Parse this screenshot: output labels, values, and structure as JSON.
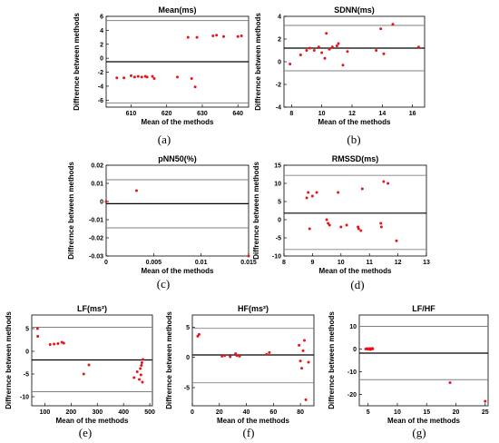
{
  "chart_data": [
    {
      "id": "a",
      "type": "scatter",
      "title": "Mean(ms)",
      "caption": "(a)",
      "xlabel": "Mean of the methods",
      "ylabel": "Diffrernce between methods",
      "xlim": [
        603,
        643
      ],
      "ylim": [
        -7,
        6
      ],
      "xticks": [
        610,
        620,
        630,
        640
      ],
      "yticks": [
        -6,
        -4,
        -2,
        0,
        2,
        4,
        6
      ],
      "lines": [
        5.4,
        -0.5,
        -6.4
      ],
      "x": [
        606,
        608,
        610,
        611,
        612,
        613,
        614,
        614.5,
        616,
        616.5,
        623,
        626,
        627,
        628,
        628.5,
        633,
        634,
        636,
        640,
        641
      ],
      "y": [
        -2.8,
        -2.8,
        -2.5,
        -2.7,
        -2.6,
        -2.7,
        -2.6,
        -2.7,
        -2.6,
        -2.9,
        -2.7,
        3.0,
        -2.9,
        -4.1,
        3.0,
        3.2,
        3.3,
        3.1,
        3.1,
        3.2
      ]
    },
    {
      "id": "b",
      "type": "scatter",
      "title": "SDNN(ms)",
      "caption": "(b)",
      "xlabel": "Mean of the methods",
      "ylabel": "Diffrernce between methods",
      "xlim": [
        7.5,
        16.8
      ],
      "ylim": [
        -4,
        4
      ],
      "xticks": [
        8,
        10,
        12,
        14,
        16
      ],
      "yticks": [
        -4,
        -2,
        0,
        2,
        4
      ],
      "lines": [
        3.2,
        1.2,
        -0.8
      ],
      "x": [
        7.9,
        8.6,
        9.0,
        9.2,
        9.5,
        9.8,
        10.0,
        10.2,
        10.3,
        10.5,
        10.7,
        11.0,
        11.1,
        11.4,
        11.7,
        13.6,
        13.9,
        14.1,
        14.7,
        16.4
      ],
      "y": [
        -0.2,
        0.6,
        1.0,
        1.2,
        1.0,
        1.3,
        0.8,
        0.3,
        2.5,
        1.1,
        1.3,
        1.4,
        1.6,
        -0.3,
        0.9,
        1.0,
        2.9,
        0.7,
        3.3,
        1.3
      ]
    },
    {
      "id": "c",
      "type": "scatter",
      "title": "pNN50(%)",
      "caption": "(c)",
      "xlabel": "Mean of the methods",
      "ylabel": "Diffrernce between methods",
      "xlim": [
        0,
        0.015
      ],
      "ylim": [
        -0.03,
        0.02
      ],
      "xticks": [
        0,
        0.005,
        0.01,
        0.015
      ],
      "xticklabels": [
        "0",
        "0.005",
        "0.01",
        "0.015"
      ],
      "yticks": [
        -0.03,
        -0.02,
        -0.01,
        0,
        0.01,
        0.02
      ],
      "lines": [
        0.012,
        -0.0012,
        -0.0145
      ],
      "x": [
        0,
        0.0032,
        0.015
      ],
      "y": [
        0,
        0.006,
        -0.03
      ]
    },
    {
      "id": "d",
      "type": "scatter",
      "title": "RMSSD(ms)",
      "caption": "(d)",
      "xlabel": "Mean of the methods",
      "ylabel": "Diffrernce between methods",
      "xlim": [
        8,
        13
      ],
      "ylim": [
        -10,
        15
      ],
      "xticks": [
        8,
        9,
        10,
        11,
        12,
        13
      ],
      "yticks": [
        -10,
        -5,
        0,
        5,
        10,
        15
      ],
      "lines": [
        12.2,
        1.8,
        -8.2
      ],
      "x": [
        8.8,
        8.85,
        8.9,
        9.0,
        9.15,
        9.5,
        9.55,
        9.6,
        9.9,
        10.0,
        10.2,
        10.6,
        10.62,
        10.7,
        10.75,
        11.4,
        11.42,
        11.5,
        11.65,
        11.95
      ],
      "y": [
        6.0,
        7.5,
        -2.5,
        6.5,
        7.5,
        0.0,
        -1.0,
        -1.5,
        7.5,
        -2.0,
        -1.5,
        -2.0,
        -2.5,
        -3.0,
        8.5,
        -1.0,
        -2.0,
        10.5,
        10.0,
        -5.8
      ]
    },
    {
      "id": "e",
      "type": "scatter",
      "title": "LF(ms²)",
      "caption": "(e)",
      "xlabel": "Mean of the methods",
      "ylabel": "Diffrernce between methods",
      "xlim": [
        50,
        510
      ],
      "ylim": [
        -12,
        8
      ],
      "xticks": [
        100,
        200,
        300,
        400,
        500
      ],
      "yticks": [
        -10,
        -5,
        0,
        5
      ],
      "lines": [
        5.3,
        -1.9,
        -8.9
      ],
      "x": [
        72,
        73,
        120,
        135,
        150,
        165,
        172,
        248,
        268,
        440,
        452,
        460,
        464,
        466,
        468,
        470,
        472,
        474
      ],
      "y": [
        5.0,
        3.3,
        1.5,
        1.6,
        1.7,
        2.0,
        1.8,
        -5.0,
        -3.0,
        -5.8,
        -4.5,
        -6.2,
        -3.8,
        -5.2,
        -3.1,
        -2.5,
        -6.8,
        -1.8
      ]
    },
    {
      "id": "f",
      "type": "scatter",
      "title": "HF(ms²)",
      "caption": "(f)",
      "xlabel": "Mean of the methods",
      "ylabel": "Diffrernce between methods",
      "xlim": [
        0,
        90
      ],
      "ylim": [
        -8,
        7
      ],
      "xticks": [
        0,
        20,
        40,
        60,
        80
      ],
      "yticks": [
        -5,
        0,
        5
      ],
      "lines": [
        4.8,
        0.4,
        -4.2
      ],
      "x": [
        4,
        5,
        22,
        24,
        28,
        32,
        33,
        35,
        55,
        57,
        79,
        80,
        81,
        82,
        83,
        84,
        86
      ],
      "y": [
        3.5,
        3.8,
        0.2,
        0.3,
        0.1,
        0.6,
        0.3,
        0.2,
        0.5,
        0.8,
        2.0,
        -0.6,
        -1.8,
        1.1,
        2.8,
        -7.0,
        -0.8
      ]
    },
    {
      "id": "g",
      "type": "scatter",
      "title": "LF/HF",
      "caption": "(g)",
      "xlabel": "Mean of the methods",
      "ylabel": "Diffrernce between methods",
      "xlim": [
        3.5,
        25.5
      ],
      "ylim": [
        -25,
        15
      ],
      "xticks": [
        5,
        10,
        15,
        20,
        25
      ],
      "yticks": [
        -20,
        -10,
        0,
        10
      ],
      "lines": [
        10.0,
        -1.8,
        -13.5
      ],
      "x": [
        4.6,
        4.8,
        5.0,
        5.1,
        5.2,
        5.3,
        5.4,
        5.5,
        5.6,
        5.7,
        5.8,
        19.0,
        25.0
      ],
      "y": [
        0.0,
        0.2,
        -0.1,
        0.1,
        0.0,
        0.2,
        -0.2,
        0.1,
        0.0,
        0.3,
        0.1,
        -14.8,
        -23.0
      ]
    }
  ],
  "colors": {
    "point": "#e8141a",
    "limit_line": "#808080",
    "mean_line": "#000000",
    "axis": "#000000"
  }
}
